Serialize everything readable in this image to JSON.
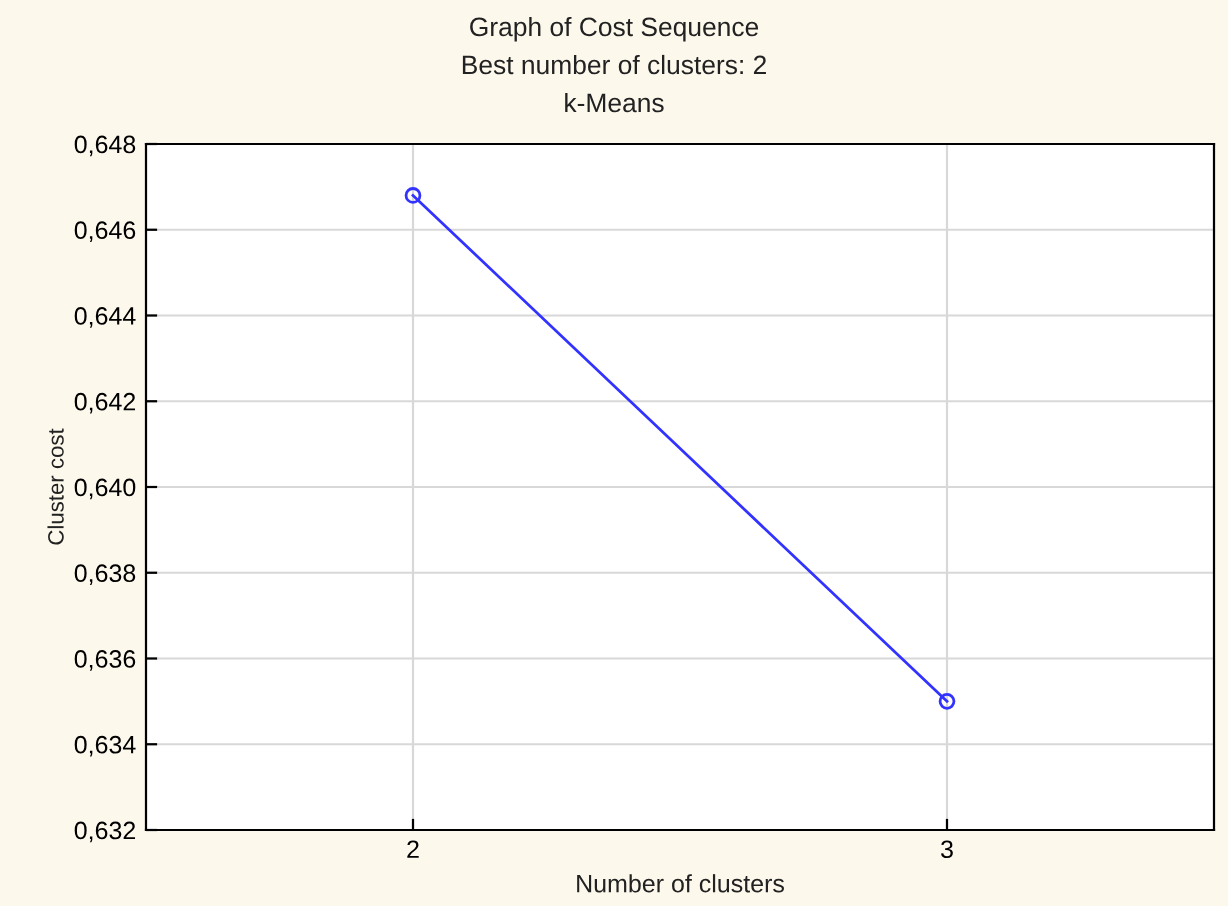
{
  "chart_data": {
    "type": "line",
    "title": "Graph of Cost Sequence",
    "subtitle": "Best number of clusters: 2",
    "annotations": [
      "k-Means"
    ],
    "xlabel": "Number of clusters",
    "ylabel": "Cluster cost",
    "x": [
      2,
      3
    ],
    "series": [
      {
        "color": "#3333ff",
        "values": [
          0.6468,
          0.635
        ]
      }
    ],
    "xlim": [
      1.5,
      3.5
    ],
    "xticks": [
      2,
      3
    ],
    "ylim": [
      0.632,
      0.648
    ],
    "yticks": [
      {
        "value": 0.632,
        "label": "0,632"
      },
      {
        "value": 0.634,
        "label": "0,634"
      },
      {
        "value": 0.636,
        "label": "0,636"
      },
      {
        "value": 0.638,
        "label": "0,638"
      },
      {
        "value": 0.64,
        "label": "0,640"
      },
      {
        "value": 0.642,
        "label": "0,642"
      },
      {
        "value": 0.644,
        "label": "0,644"
      },
      {
        "value": 0.646,
        "label": "0,646"
      },
      {
        "value": 0.648,
        "label": "0,648"
      }
    ],
    "grid": true,
    "marker": "circle",
    "line_style": "solid"
  }
}
